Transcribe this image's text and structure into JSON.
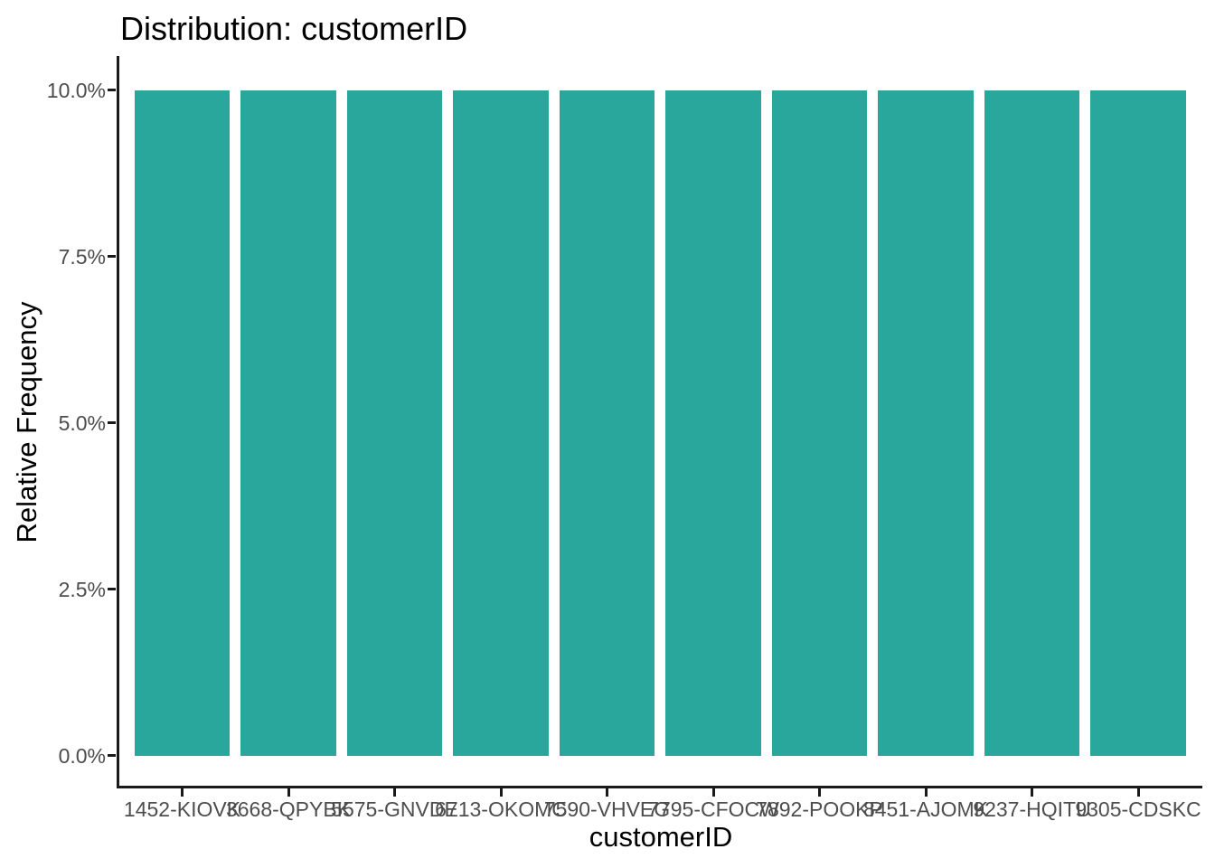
{
  "chart_data": {
    "type": "bar",
    "title": "Distribution: customerID",
    "xlabel": "customerID",
    "ylabel": "Relative Frequency",
    "categories": [
      "1452-KIOVK",
      "3668-QPYBK",
      "5575-GNVDE",
      "6713-OKOMC",
      "7590-VHVEG",
      "7795-CFOCW",
      "7892-POOKP",
      "8451-AJOMK",
      "9237-HQITU",
      "9305-CDSKC"
    ],
    "values": [
      10,
      10,
      10,
      10,
      10,
      10,
      10,
      10,
      10,
      10
    ],
    "value_unit": "percent",
    "y_ticks": [
      {
        "value": 0,
        "label": "0.0%"
      },
      {
        "value": 2.5,
        "label": "2.5%"
      },
      {
        "value": 5,
        "label": "5.0%"
      },
      {
        "value": 7.5,
        "label": "7.5%"
      },
      {
        "value": 10,
        "label": "10.0%"
      }
    ],
    "ylim": [
      0,
      10.5
    ],
    "grid": false,
    "legend": "none",
    "bar_color": "#2aa79d",
    "axis_color": "#1a1a1a",
    "tick_label_color": "#4d4d4d",
    "title_color": "#000000",
    "background_color": "#ffffff"
  }
}
